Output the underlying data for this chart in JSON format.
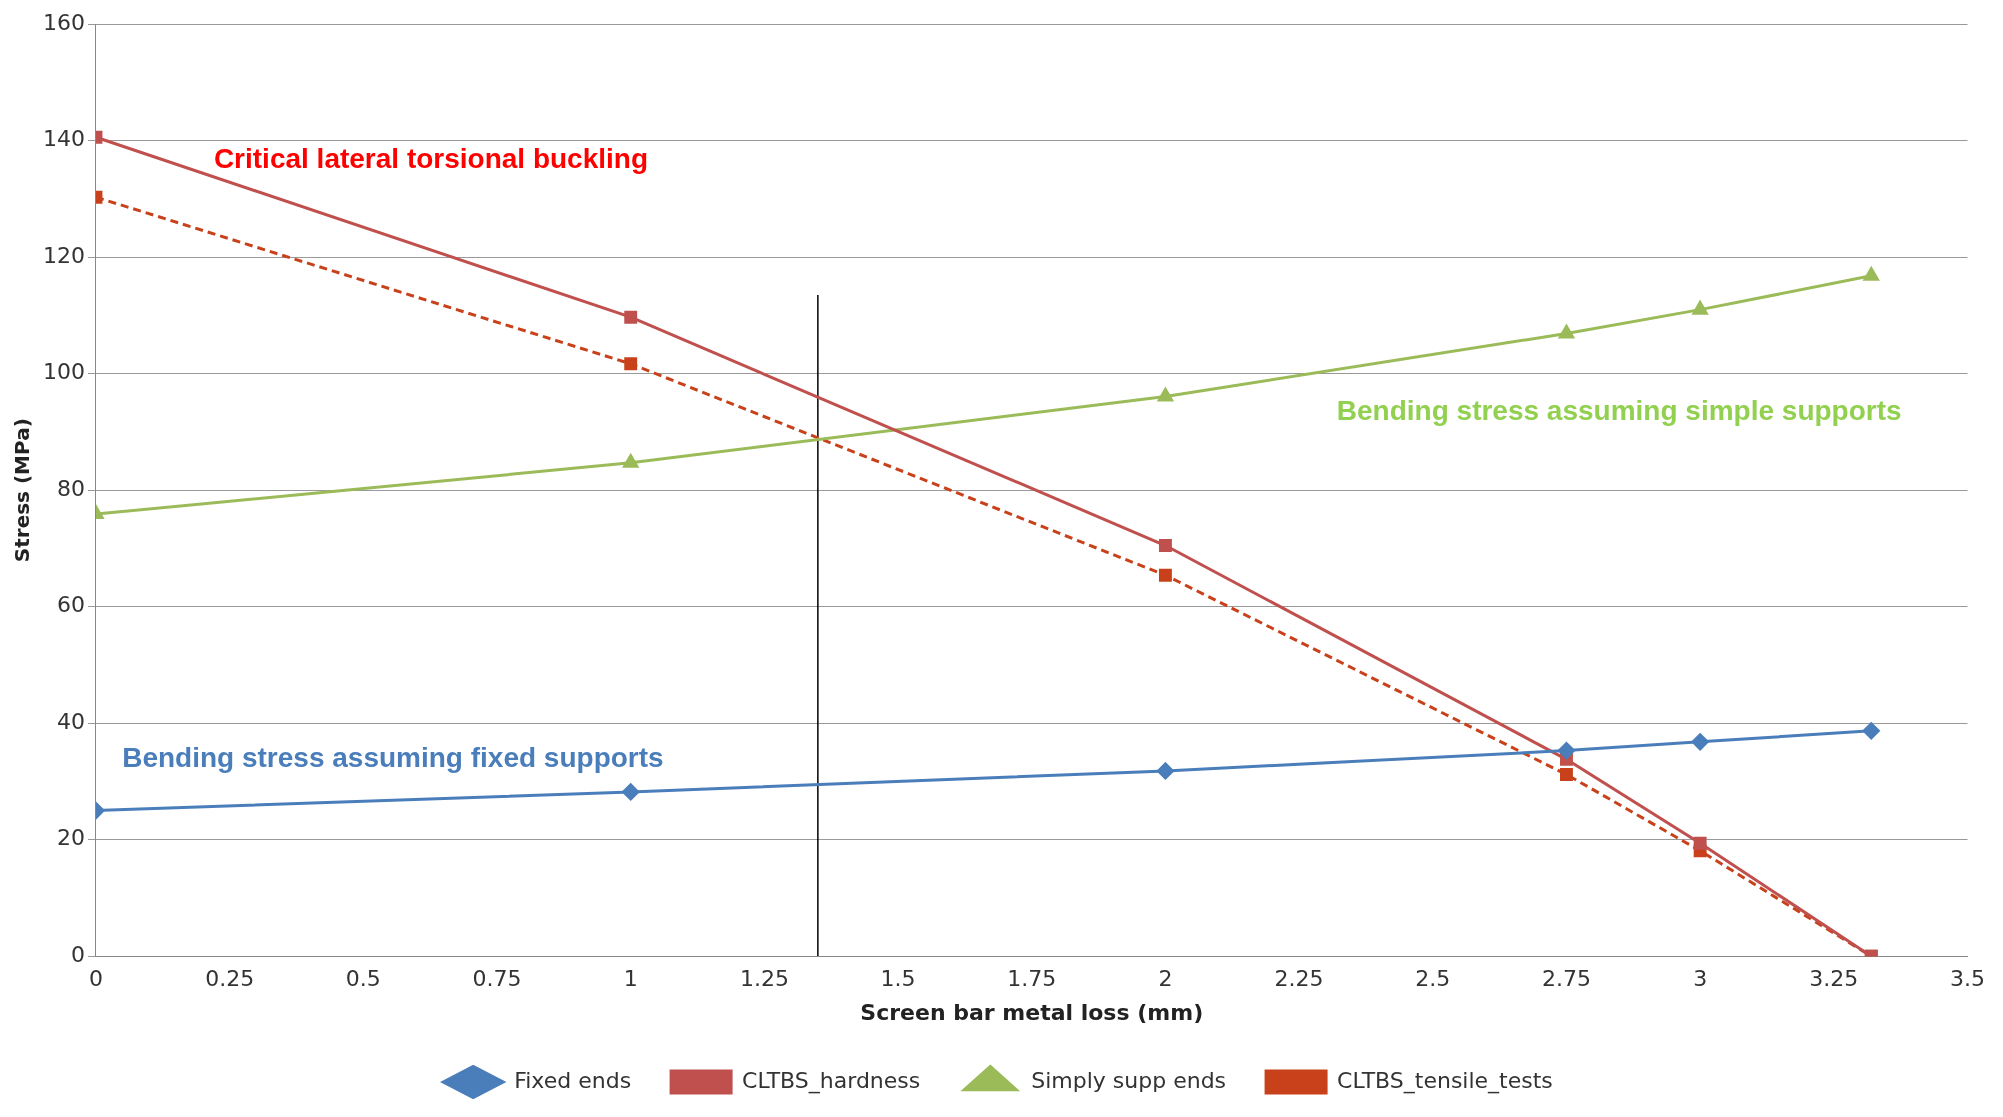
{
  "chart_data": {
    "type": "line",
    "xlabel": "Screen bar metal loss (mm)",
    "ylabel": "Stress (MPa)",
    "xlim": [
      0,
      3.5
    ],
    "xticks": [
      0,
      0.25,
      0.5,
      0.75,
      1,
      1.25,
      1.5,
      1.75,
      2,
      2.25,
      2.5,
      2.75,
      3,
      3.25,
      3.5
    ],
    "ylim": [
      0,
      160
    ],
    "yticks": [
      0,
      20,
      40,
      60,
      80,
      100,
      120,
      140,
      160
    ],
    "grid": "y",
    "legend": "bottom",
    "series": [
      {
        "name": "Fixed ends",
        "color": "#4a7ebb",
        "marker": "diamond",
        "line_style": "solid",
        "x": [
          0,
          1,
          2,
          2.75,
          3,
          3.32
        ],
        "values": [
          25,
          28.2,
          31.8,
          35.3,
          36.8,
          38.7
        ]
      },
      {
        "name": "CLTBS_hardness",
        "color": "#c0504d",
        "marker": "square",
        "line_style": "solid",
        "x": [
          0,
          1,
          2,
          2.75,
          3,
          3.32
        ],
        "values": [
          140.6,
          109.7,
          70.5,
          33.8,
          19.4,
          0
        ]
      },
      {
        "name": "Simply supp ends",
        "color": "#9bbb59",
        "marker": "triangle",
        "line_style": "solid",
        "x": [
          0,
          1,
          2,
          2.75,
          3,
          3.32
        ],
        "values": [
          75.9,
          84.7,
          96.1,
          106.9,
          111,
          116.8
        ]
      },
      {
        "name": "CLTBS_tensile_tests",
        "color": "#c8411a",
        "marker": "square",
        "line_style": "dashed",
        "x": [
          0,
          1,
          2,
          2.75,
          3,
          3.32
        ],
        "values": [
          130.3,
          101.7,
          65.4,
          31.2,
          18.1,
          0
        ]
      },
      {
        "color": "#000000",
        "marker": "none",
        "line_style": "solid",
        "x": [
          1.35,
          1.35
        ],
        "values": [
          0,
          113.5
        ]
      }
    ],
    "annotations": [
      "Critical lateral torsional buckling",
      "Bending stress assuming simple supports",
      "Bending stress assuming fixed supports"
    ]
  }
}
